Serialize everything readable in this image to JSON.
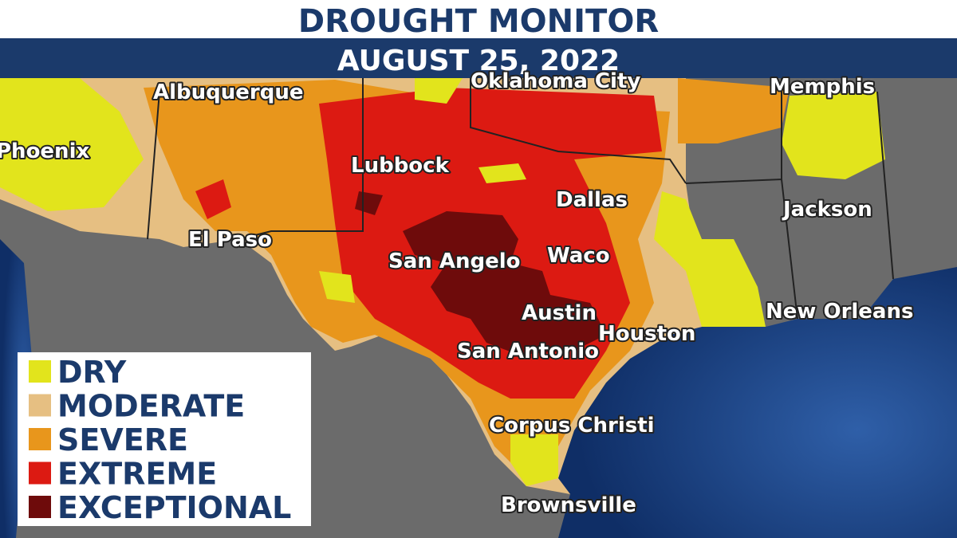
{
  "header": {
    "title": "DROUGHT MONITOR",
    "date": "AUGUST 25, 2022"
  },
  "cities": [
    {
      "label": "Albuquerque"
    },
    {
      "label": "Oklahoma City"
    },
    {
      "label": "Memphis"
    },
    {
      "label": "Phoenix"
    },
    {
      "label": "Lubbock"
    },
    {
      "label": "Dallas"
    },
    {
      "label": "Jackson"
    },
    {
      "label": "El Paso"
    },
    {
      "label": "San Angelo"
    },
    {
      "label": "Waco"
    },
    {
      "label": "Austin"
    },
    {
      "label": "Houston"
    },
    {
      "label": "New Orleans"
    },
    {
      "label": "San Antonio"
    },
    {
      "label": "Corpus Christi"
    },
    {
      "label": "Brownsville"
    }
  ],
  "legend": [
    {
      "label": "DRY",
      "color": "#e2e41c"
    },
    {
      "label": "MODERATE",
      "color": "#e6bf82"
    },
    {
      "label": "SEVERE",
      "color": "#e8961c"
    },
    {
      "label": "EXTREME",
      "color": "#dc1a12"
    },
    {
      "label": "EXCEPTIONAL",
      "color": "#6e0b0b"
    }
  ]
}
